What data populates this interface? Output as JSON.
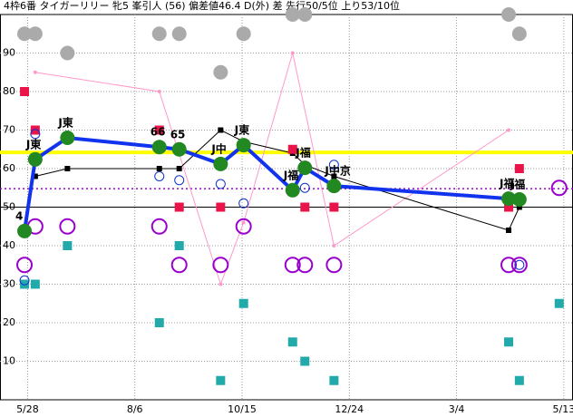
{
  "chart_data": {
    "type": "line",
    "title": "4枠6番 タイガーリリー 牝5 峯引人 (56) 偏差値46.4 D(外) 差 先行50/5位 上り53/10位",
    "xlim": [
      -18,
      356
    ],
    "ylim": [
      0,
      100
    ],
    "xticks": [
      {
        "value": 0,
        "label": "5/28"
      },
      {
        "value": 70,
        "label": "8/6"
      },
      {
        "value": 140,
        "label": "10/15"
      },
      {
        "value": 210,
        "label": "12/24"
      },
      {
        "value": 280,
        "label": "3/4"
      },
      {
        "value": 350,
        "label": "5/13"
      }
    ],
    "yticks": [
      10,
      20,
      30,
      40,
      50,
      60,
      70,
      80,
      90
    ],
    "grid": true,
    "hlines": [
      {
        "value": 64.2,
        "color": "#ffff00",
        "width": 4,
        "dash": false
      },
      {
        "value": 54.8,
        "color": "#9900cc",
        "width": 1.5,
        "dash": true
      },
      {
        "value": 50,
        "color": "#000000",
        "width": 1,
        "dash": false
      }
    ],
    "series": [
      {
        "color": "#ff99cc",
        "line": 1,
        "marker": "dot",
        "x": [
          5,
          86,
          126,
          141,
          173,
          200,
          314
        ],
        "values": [
          85,
          80,
          30,
          46,
          90,
          40,
          70
        ]
      },
      {
        "color": "#000000",
        "line": 1,
        "marker": "square-small",
        "x": [
          5,
          26,
          86,
          99,
          126,
          141,
          173,
          181,
          200,
          314,
          321
        ],
        "values": [
          58,
          60,
          60,
          60,
          70,
          67,
          64,
          61,
          58,
          44,
          50
        ]
      },
      {
        "color": "#e8144a",
        "line": 0,
        "marker": "square",
        "x": [
          -2,
          5,
          86,
          99,
          126,
          141,
          173,
          181,
          200,
          314,
          321
        ],
        "values": [
          80,
          70,
          70,
          50,
          50,
          95,
          65,
          50,
          50,
          50,
          60
        ]
      },
      {
        "color": "#22aaaa",
        "line": 0,
        "marker": "square",
        "x": [
          -2,
          5,
          26,
          86,
          99,
          126,
          141,
          173,
          181,
          200,
          314,
          321,
          347
        ],
        "values": [
          30,
          30,
          40,
          20,
          40,
          5,
          25,
          15,
          10,
          5,
          15,
          5,
          25
        ]
      },
      {
        "color": "#aaaaaa",
        "line": 0,
        "marker": "disc",
        "x": [
          -2,
          5,
          26,
          86,
          99,
          126,
          141,
          173,
          181,
          314,
          321
        ],
        "values": [
          95,
          95,
          90,
          95,
          95,
          85,
          95,
          100,
          100,
          100,
          95
        ]
      },
      {
        "color": "#9900cc",
        "line": 0,
        "marker": "ring",
        "x": [
          -2,
          5,
          26,
          86,
          99,
          126,
          141,
          173,
          181,
          200,
          314,
          321,
          347
        ],
        "values": [
          35,
          45,
          45,
          45,
          35,
          35,
          45,
          35,
          35,
          35,
          35,
          35,
          55
        ]
      },
      {
        "color": "#1133cc",
        "line": 0,
        "marker": "ring-small",
        "x": [
          -2,
          5,
          86,
          99,
          126,
          141,
          181,
          200,
          321
        ],
        "values": [
          31,
          69,
          58,
          57,
          56,
          51,
          55,
          61,
          35
        ]
      },
      {
        "color": "#1133ee",
        "line": 4,
        "marker": "green",
        "x": [
          -2,
          5,
          26,
          86,
          99,
          126,
          141,
          173,
          181,
          200,
          314,
          321
        ],
        "values": [
          43.8,
          62.4,
          68,
          65.6,
          65,
          61.2,
          66.1,
          54.4,
          60.2,
          55.5,
          52.2,
          52
        ],
        "labels": [
          "4",
          "J東",
          "J東",
          "66",
          "65",
          "J中",
          "J東",
          "J福",
          "J福",
          "J中京",
          "J福",
          "J福"
        ]
      }
    ]
  }
}
